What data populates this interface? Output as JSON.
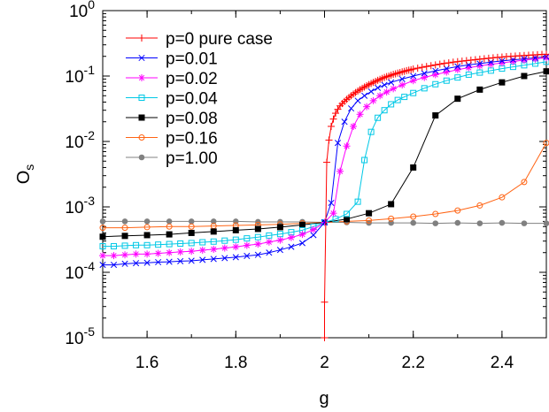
{
  "chart_data": {
    "type": "line",
    "xlabel": "g",
    "ylabel": "O",
    "ylabel_sub": "s",
    "xlim": [
      1.5,
      2.5
    ],
    "ylim": [
      1e-05,
      1
    ],
    "y_scale": "log",
    "grid": false,
    "legend_position": "top-left",
    "x_ticks": [
      {
        "value": 1.6,
        "label": "1.6"
      },
      {
        "value": 1.8,
        "label": "1.8"
      },
      {
        "value": 2.0,
        "label": "2"
      },
      {
        "value": 2.2,
        "label": "2.2"
      },
      {
        "value": 2.4,
        "label": "2.4"
      }
    ],
    "y_ticks": [
      {
        "value": 1e-05,
        "base": "10",
        "exp": "-5"
      },
      {
        "value": 0.0001,
        "base": "10",
        "exp": "-4"
      },
      {
        "value": 0.001,
        "base": "10",
        "exp": "-3"
      },
      {
        "value": 0.01,
        "base": "10",
        "exp": "-2"
      },
      {
        "value": 0.1,
        "base": "10",
        "exp": "-1"
      },
      {
        "value": 1,
        "base": "10",
        "exp": "0"
      }
    ],
    "series": [
      {
        "name": "p=0 pure case",
        "color": "#ff0000",
        "marker": "plus",
        "points": [
          [
            2.0,
            1e-05
          ],
          [
            2.0,
            3.5e-05
          ],
          [
            2.005,
            0.0048
          ],
          [
            2.01,
            0.0105
          ],
          [
            2.015,
            0.017
          ],
          [
            2.02,
            0.022
          ],
          [
            2.025,
            0.027
          ],
          [
            2.03,
            0.031
          ],
          [
            2.035,
            0.035
          ],
          [
            2.04,
            0.038
          ],
          [
            2.045,
            0.041
          ],
          [
            2.05,
            0.044
          ],
          [
            2.055,
            0.047
          ],
          [
            2.06,
            0.05
          ],
          [
            2.065,
            0.053
          ],
          [
            2.07,
            0.056
          ],
          [
            2.075,
            0.059
          ],
          [
            2.08,
            0.062
          ],
          [
            2.085,
            0.065
          ],
          [
            2.09,
            0.068
          ],
          [
            2.095,
            0.071
          ],
          [
            2.1,
            0.074
          ],
          [
            2.105,
            0.077
          ],
          [
            2.11,
            0.08
          ],
          [
            2.115,
            0.083
          ],
          [
            2.12,
            0.086
          ],
          [
            2.125,
            0.089
          ],
          [
            2.13,
            0.092
          ],
          [
            2.135,
            0.095
          ],
          [
            2.14,
            0.098
          ],
          [
            2.145,
            0.1
          ],
          [
            2.15,
            0.103
          ],
          [
            2.155,
            0.106
          ],
          [
            2.16,
            0.108
          ],
          [
            2.165,
            0.111
          ],
          [
            2.17,
            0.113
          ],
          [
            2.175,
            0.116
          ],
          [
            2.18,
            0.118
          ],
          [
            2.185,
            0.121
          ],
          [
            2.19,
            0.123
          ],
          [
            2.195,
            0.125
          ],
          [
            2.2,
            0.128
          ],
          [
            2.21,
            0.132
          ],
          [
            2.22,
            0.136
          ],
          [
            2.23,
            0.14
          ],
          [
            2.24,
            0.144
          ],
          [
            2.25,
            0.148
          ],
          [
            2.26,
            0.152
          ],
          [
            2.27,
            0.156
          ],
          [
            2.28,
            0.159
          ],
          [
            2.29,
            0.163
          ],
          [
            2.3,
            0.166
          ],
          [
            2.31,
            0.169
          ],
          [
            2.32,
            0.172
          ],
          [
            2.33,
            0.175
          ],
          [
            2.34,
            0.178
          ],
          [
            2.35,
            0.181
          ],
          [
            2.36,
            0.184
          ],
          [
            2.37,
            0.187
          ],
          [
            2.38,
            0.19
          ],
          [
            2.39,
            0.193
          ],
          [
            2.4,
            0.195
          ],
          [
            2.41,
            0.198
          ],
          [
            2.42,
            0.2
          ],
          [
            2.43,
            0.202
          ],
          [
            2.44,
            0.204
          ],
          [
            2.45,
            0.206
          ],
          [
            2.46,
            0.208
          ],
          [
            2.47,
            0.21
          ],
          [
            2.48,
            0.212
          ],
          [
            2.49,
            0.214
          ],
          [
            2.5,
            0.215
          ]
        ]
      },
      {
        "name": "p=0.01",
        "color": "#0000ff",
        "marker": "x",
        "points": [
          [
            1.5,
            0.00013
          ],
          [
            1.525,
            0.00013
          ],
          [
            1.55,
            0.000135
          ],
          [
            1.575,
            0.000138
          ],
          [
            1.6,
            0.00014
          ],
          [
            1.625,
            0.000143
          ],
          [
            1.65,
            0.000145
          ],
          [
            1.675,
            0.000148
          ],
          [
            1.7,
            0.00015
          ],
          [
            1.725,
            0.000155
          ],
          [
            1.75,
            0.00016
          ],
          [
            1.775,
            0.000165
          ],
          [
            1.8,
            0.00017
          ],
          [
            1.825,
            0.000178
          ],
          [
            1.85,
            0.000185
          ],
          [
            1.875,
            0.0002
          ],
          [
            1.9,
            0.00022
          ],
          [
            1.925,
            0.000245
          ],
          [
            1.95,
            0.00028
          ],
          [
            1.975,
            0.00037
          ],
          [
            2.0,
            0.00058
          ],
          [
            2.015,
            0.00115
          ],
          [
            2.03,
            0.0095
          ],
          [
            2.045,
            0.02
          ],
          [
            2.06,
            0.032
          ],
          [
            2.075,
            0.042
          ],
          [
            2.09,
            0.05
          ],
          [
            2.105,
            0.058
          ],
          [
            2.12,
            0.066
          ],
          [
            2.135,
            0.073
          ],
          [
            2.15,
            0.08
          ],
          [
            2.175,
            0.09
          ],
          [
            2.2,
            0.1
          ],
          [
            2.225,
            0.11
          ],
          [
            2.25,
            0.12
          ],
          [
            2.275,
            0.13
          ],
          [
            2.3,
            0.14
          ],
          [
            2.325,
            0.148
          ],
          [
            2.35,
            0.155
          ],
          [
            2.375,
            0.163
          ],
          [
            2.4,
            0.17
          ],
          [
            2.425,
            0.177
          ],
          [
            2.45,
            0.183
          ],
          [
            2.475,
            0.19
          ],
          [
            2.5,
            0.198
          ]
        ]
      },
      {
        "name": "p=0.02",
        "color": "#ff00ff",
        "marker": "asterisk",
        "points": [
          [
            1.5,
            0.00018
          ],
          [
            1.525,
            0.00018
          ],
          [
            1.55,
            0.000185
          ],
          [
            1.575,
            0.00019
          ],
          [
            1.6,
            0.00019
          ],
          [
            1.625,
            0.000195
          ],
          [
            1.65,
            0.0002
          ],
          [
            1.675,
            0.000205
          ],
          [
            1.7,
            0.00021
          ],
          [
            1.725,
            0.000218
          ],
          [
            1.75,
            0.000225
          ],
          [
            1.775,
            0.000235
          ],
          [
            1.8,
            0.000245
          ],
          [
            1.825,
            0.000258
          ],
          [
            1.85,
            0.00027
          ],
          [
            1.875,
            0.00029
          ],
          [
            1.9,
            0.00031
          ],
          [
            1.925,
            0.00034
          ],
          [
            1.95,
            0.00038
          ],
          [
            1.975,
            0.00045
          ],
          [
            2.0,
            0.00058
          ],
          [
            2.02,
            0.0008
          ],
          [
            2.035,
            0.0035
          ],
          [
            2.05,
            0.0085
          ],
          [
            2.065,
            0.017
          ],
          [
            2.08,
            0.026
          ],
          [
            2.095,
            0.034
          ],
          [
            2.11,
            0.042
          ],
          [
            2.125,
            0.05
          ],
          [
            2.14,
            0.057
          ],
          [
            2.155,
            0.064
          ],
          [
            2.175,
            0.073
          ],
          [
            2.2,
            0.085
          ],
          [
            2.225,
            0.095
          ],
          [
            2.25,
            0.105
          ],
          [
            2.275,
            0.115
          ],
          [
            2.3,
            0.125
          ],
          [
            2.325,
            0.134
          ],
          [
            2.35,
            0.143
          ],
          [
            2.375,
            0.151
          ],
          [
            2.4,
            0.159
          ],
          [
            2.425,
            0.167
          ],
          [
            2.45,
            0.175
          ],
          [
            2.475,
            0.182
          ],
          [
            2.5,
            0.19
          ]
        ]
      },
      {
        "name": "p=0.04",
        "color": "#00c8e6",
        "marker": "square-open",
        "points": [
          [
            1.5,
            0.00025
          ],
          [
            1.525,
            0.00025
          ],
          [
            1.55,
            0.000255
          ],
          [
            1.575,
            0.00026
          ],
          [
            1.6,
            0.00026
          ],
          [
            1.625,
            0.000265
          ],
          [
            1.65,
            0.00027
          ],
          [
            1.675,
            0.000275
          ],
          [
            1.7,
            0.00028
          ],
          [
            1.725,
            0.000288
          ],
          [
            1.75,
            0.000295
          ],
          [
            1.775,
            0.000305
          ],
          [
            1.8,
            0.000315
          ],
          [
            1.825,
            0.00033
          ],
          [
            1.85,
            0.000345
          ],
          [
            1.875,
            0.000365
          ],
          [
            1.9,
            0.000385
          ],
          [
            1.925,
            0.00041
          ],
          [
            1.95,
            0.00044
          ],
          [
            1.975,
            0.0005
          ],
          [
            2.0,
            0.00058
          ],
          [
            2.025,
            0.00065
          ],
          [
            2.05,
            0.00078
          ],
          [
            2.075,
            0.0012
          ],
          [
            2.09,
            0.0052
          ],
          [
            2.105,
            0.014
          ],
          [
            2.12,
            0.023
          ],
          [
            2.135,
            0.03
          ],
          [
            2.15,
            0.037
          ],
          [
            2.165,
            0.043
          ],
          [
            2.18,
            0.048
          ],
          [
            2.2,
            0.055
          ],
          [
            2.225,
            0.065
          ],
          [
            2.25,
            0.075
          ],
          [
            2.275,
            0.085
          ],
          [
            2.3,
            0.095
          ],
          [
            2.325,
            0.105
          ],
          [
            2.35,
            0.113
          ],
          [
            2.375,
            0.121
          ],
          [
            2.4,
            0.13
          ],
          [
            2.425,
            0.138
          ],
          [
            2.45,
            0.146
          ],
          [
            2.475,
            0.155
          ],
          [
            2.5,
            0.165
          ]
        ]
      },
      {
        "name": "p=0.08",
        "color": "#000000",
        "marker": "square-filled",
        "points": [
          [
            1.5,
            0.00035
          ],
          [
            1.55,
            0.00036
          ],
          [
            1.6,
            0.00037
          ],
          [
            1.65,
            0.00038
          ],
          [
            1.7,
            0.0004
          ],
          [
            1.75,
            0.00042
          ],
          [
            1.8,
            0.00044
          ],
          [
            1.85,
            0.00046
          ],
          [
            1.9,
            0.00049
          ],
          [
            1.95,
            0.00053
          ],
          [
            2.0,
            0.00058
          ],
          [
            2.05,
            0.00065
          ],
          [
            2.1,
            0.0008
          ],
          [
            2.15,
            0.0011
          ],
          [
            2.2,
            0.004
          ],
          [
            2.25,
            0.025
          ],
          [
            2.3,
            0.045
          ],
          [
            2.35,
            0.062
          ],
          [
            2.4,
            0.08
          ],
          [
            2.45,
            0.1
          ],
          [
            2.5,
            0.118
          ]
        ]
      },
      {
        "name": "p=0.16",
        "color": "#ff6414",
        "marker": "circle-open",
        "points": [
          [
            1.5,
            0.00048
          ],
          [
            1.55,
            0.00048
          ],
          [
            1.6,
            0.00049
          ],
          [
            1.65,
            0.0005
          ],
          [
            1.7,
            0.0005
          ],
          [
            1.75,
            0.00051
          ],
          [
            1.8,
            0.00052
          ],
          [
            1.85,
            0.00053
          ],
          [
            1.9,
            0.00054
          ],
          [
            1.95,
            0.00056
          ],
          [
            2.0,
            0.00058
          ],
          [
            2.05,
            0.0006
          ],
          [
            2.1,
            0.00062
          ],
          [
            2.15,
            0.00066
          ],
          [
            2.2,
            0.00071
          ],
          [
            2.25,
            0.00078
          ],
          [
            2.3,
            0.00088
          ],
          [
            2.35,
            0.00105
          ],
          [
            2.4,
            0.0014
          ],
          [
            2.45,
            0.0024
          ],
          [
            2.5,
            0.0095
          ]
        ]
      },
      {
        "name": "p=1.00",
        "color": "#808080",
        "marker": "circle-filled",
        "points": [
          [
            1.5,
            0.0006
          ],
          [
            1.55,
            0.0006
          ],
          [
            1.6,
            0.0006
          ],
          [
            1.65,
            0.0006
          ],
          [
            1.7,
            0.0006
          ],
          [
            1.75,
            0.0006
          ],
          [
            1.8,
            0.0006
          ],
          [
            1.85,
            0.00059
          ],
          [
            1.9,
            0.00059
          ],
          [
            1.95,
            0.00059
          ],
          [
            2.0,
            0.00058
          ],
          [
            2.05,
            0.00058
          ],
          [
            2.1,
            0.00057
          ],
          [
            2.15,
            0.00057
          ],
          [
            2.2,
            0.00057
          ],
          [
            2.25,
            0.00056
          ],
          [
            2.3,
            0.00057
          ],
          [
            2.35,
            0.00056
          ],
          [
            2.4,
            0.00057
          ],
          [
            2.45,
            0.00056
          ],
          [
            2.5,
            0.00056
          ]
        ]
      }
    ]
  }
}
